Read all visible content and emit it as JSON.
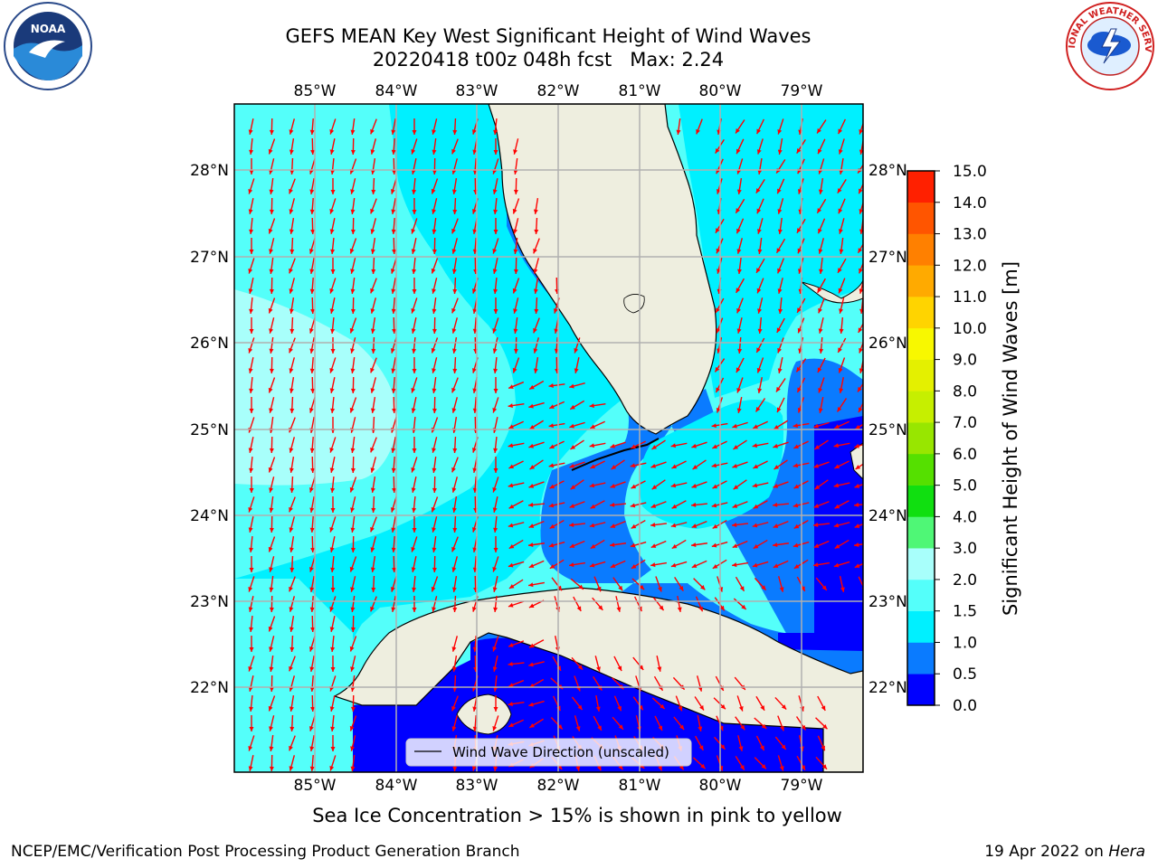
{
  "header": {
    "title_line1": "GEFS MEAN Key West Significant Height of Wind Waves",
    "title_line2": "20220418 t00z 048h fcst   Max: 2.24"
  },
  "map": {
    "lon_labels": [
      "85°W",
      "84°W",
      "83°W",
      "82°W",
      "81°W",
      "80°W",
      "79°W"
    ],
    "lat_labels": [
      "28°N",
      "27°N",
      "26°N",
      "25°N",
      "24°N",
      "23°N",
      "22°N"
    ],
    "legend_label": "Wind Wave Direction (unscaled)",
    "arrow_color": "#ff0000",
    "land_color": "#eeeedf",
    "grid_color": "#b0b0b0"
  },
  "colorbar": {
    "label": "Significant Height of Wind Waves [m]",
    "ticks": [
      "0.0",
      "0.5",
      "1.0",
      "1.5",
      "2.0",
      "3.0",
      "4.0",
      "5.0",
      "6.0",
      "7.0",
      "8.0",
      "9.0",
      "10.0",
      "11.0",
      "12.0",
      "13.0",
      "14.0",
      "15.0"
    ],
    "colors": [
      "#0000ff",
      "#0a7bff",
      "#00f0ff",
      "#54fffa",
      "#a8fffb",
      "#4ff776",
      "#10df10",
      "#55e000",
      "#98e600",
      "#c6ef00",
      "#e4f000",
      "#f8f800",
      "#ffd400",
      "#ffaa00",
      "#ff8000",
      "#ff5500",
      "#ff2000"
    ]
  },
  "footer": {
    "note": "Sea Ice Concentration > 15% is shown in pink to yellow",
    "credit": "NCEP/EMC/Verification Post Processing Product Generation Branch",
    "run_date": "19 Apr 2022 on ",
    "machine": "Hera"
  },
  "logos": {
    "noaa_text": "NOAA",
    "nws_text": "NATIONAL WEATHER SERVICE"
  }
}
